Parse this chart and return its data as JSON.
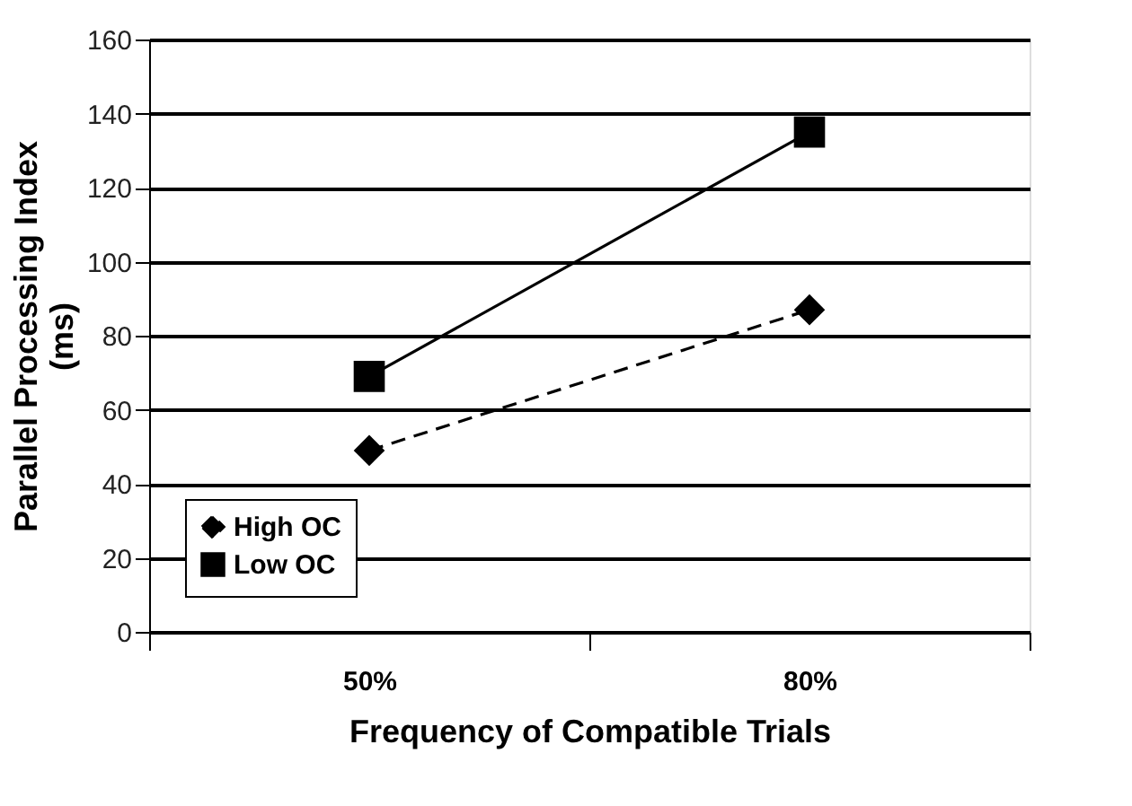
{
  "chart_data": {
    "type": "line",
    "xlabel": "Frequency of Compatible Trials",
    "ylabel": "Parallel Processing Index\n(ms)",
    "categories": [
      "50%",
      "80%"
    ],
    "series": [
      {
        "name": "High OC",
        "color": "#000000",
        "values": [
          49,
          87
        ],
        "marker": "diamond",
        "line_style": "dashed"
      },
      {
        "name": "Low OC",
        "color": "#000000",
        "values": [
          69,
          135
        ],
        "marker": "square",
        "line_style": "solid"
      }
    ],
    "ylim": [
      0,
      160
    ],
    "yticks": [
      0,
      20,
      40,
      60,
      80,
      100,
      120,
      140,
      160
    ],
    "grid": "y",
    "legend": "bottom left"
  }
}
